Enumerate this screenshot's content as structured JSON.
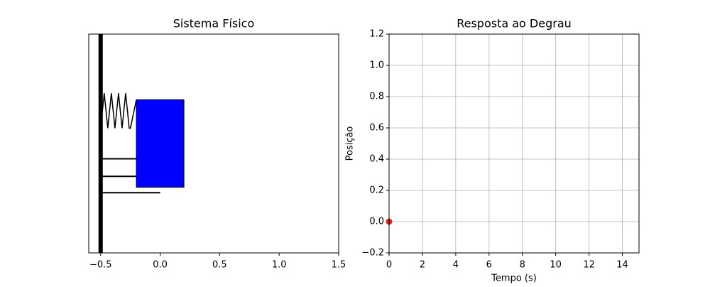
{
  "chart_data": [
    {
      "type": "schematic",
      "title": "Sistema Físico",
      "xlim": [
        -0.6,
        1.5
      ],
      "ylim": [
        -1,
        1
      ],
      "xticks": [
        {
          "value": -0.5,
          "label": "−0.5"
        },
        {
          "value": 0,
          "label": "0.0"
        },
        0.5,
        {
          "value": 1,
          "label": "1.0"
        },
        1.5
      ],
      "wall": {
        "x": -0.5,
        "color": "#000000"
      },
      "spring": {
        "x": [
          -0.5,
          -0.47,
          -0.44,
          -0.41,
          -0.38,
          -0.35,
          -0.32,
          -0.29,
          -0.26,
          -0.25,
          -0.2
        ],
        "y": [
          0.14,
          0.46,
          0.14,
          0.46,
          0.14,
          0.46,
          0.14,
          0.46,
          0.14,
          0.14,
          0.4
        ],
        "color": "#000000"
      },
      "rods": [
        {
          "x": [
            -0.5,
            0
          ],
          "y": -0.14
        },
        {
          "x": [
            -0.5,
            -0.2
          ],
          "y": -0.3
        },
        {
          "x": [
            -0.5,
            0
          ],
          "y": -0.45
        }
      ],
      "mass": {
        "x": [
          -0.2,
          0.2
        ],
        "y": [
          -0.4,
          0.4
        ],
        "color": "#0000ff"
      }
    },
    {
      "type": "line",
      "title": "Resposta ao Degrau",
      "x_label": "Tempo (s)",
      "y_label": "Posição",
      "xlim": [
        0,
        15
      ],
      "ylim": [
        -0.2,
        1.2
      ],
      "xticks": [
        0,
        2,
        4,
        6,
        8,
        10,
        12,
        14
      ],
      "yticks": [
        {
          "value": -0.2,
          "label": "−0.2"
        },
        {
          "value": 0,
          "label": "0.0"
        },
        0.2,
        0.4,
        0.6,
        0.8,
        {
          "value": 1,
          "label": "1.0"
        },
        1.2
      ],
      "grid": true,
      "series": [
        {
          "x": [
            0
          ],
          "values": [
            0
          ],
          "color": "#d62728"
        }
      ]
    }
  ]
}
